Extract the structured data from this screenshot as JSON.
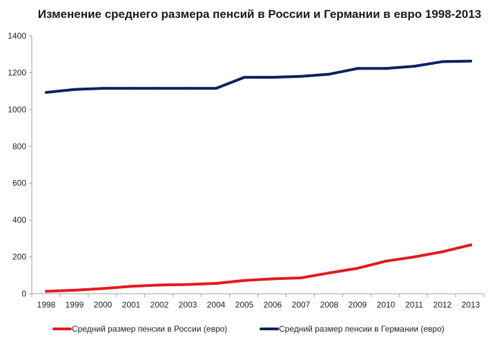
{
  "chart_data": {
    "type": "line",
    "title": "Изменение среднего размера пенсий в России и Германии в евро 1998-2013",
    "xlabel": "",
    "ylabel": "",
    "categories": [
      "1998",
      "1999",
      "2000",
      "2001",
      "2002",
      "2003",
      "2004",
      "2005",
      "2006",
      "2007",
      "2008",
      "2009",
      "2010",
      "2011",
      "2012",
      "2013"
    ],
    "y_ticks": [
      "0",
      "200",
      "400",
      "600",
      "800",
      "1000",
      "1200",
      "1400"
    ],
    "ylim": [
      0,
      1400
    ],
    "grid": false,
    "legend_position": "bottom",
    "series": [
      {
        "name": "Средний размер пенсии в России (евро)",
        "color": "#e31a1c",
        "values": [
          13,
          19,
          28,
          40,
          47,
          50,
          56,
          72,
          81,
          86,
          113,
          138,
          177,
          200,
          228,
          265
        ]
      },
      {
        "name": "Средний размер пенсии в Германии (евро)",
        "color": "#0d2260",
        "values": [
          1093,
          1109,
          1115,
          1115,
          1115,
          1115,
          1115,
          1175,
          1175,
          1180,
          1192,
          1223,
          1223,
          1235,
          1260,
          1263
        ]
      }
    ]
  }
}
